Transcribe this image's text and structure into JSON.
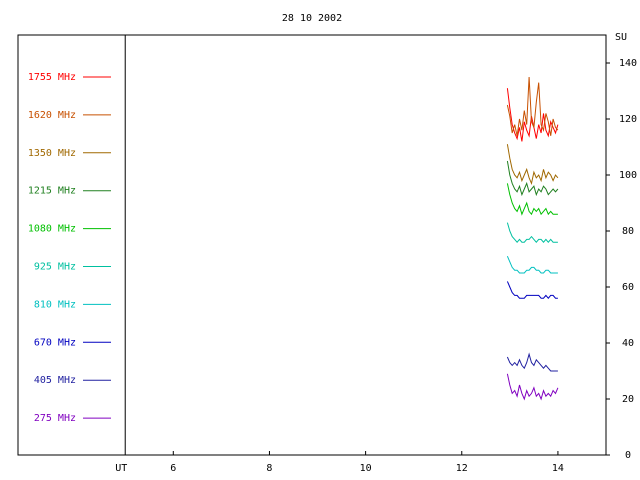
{
  "chart_data": {
    "type": "line",
    "title": "28 10 2002",
    "y_label": "SU",
    "x": [
      12.95,
      13.0,
      13.05,
      13.1,
      13.15,
      13.2,
      13.25,
      13.3,
      13.35,
      13.4,
      13.45,
      13.5,
      13.55,
      13.6,
      13.65,
      13.7,
      13.75,
      13.8,
      13.85,
      13.9,
      13.95,
      14.0
    ],
    "series": [
      {
        "name": "1755 MHz",
        "color": "#ff0000",
        "values": [
          131,
          124,
          118,
          115,
          113,
          117,
          112,
          119,
          116,
          114,
          121,
          117,
          113,
          118,
          115,
          122,
          116,
          114,
          119,
          117,
          115,
          118
        ]
      },
      {
        "name": "1620 MHz",
        "color": "#c85000",
        "values": [
          125,
          121,
          115,
          118,
          114,
          120,
          116,
          123,
          118,
          135,
          119,
          117,
          126,
          133,
          118,
          116,
          122,
          119,
          114,
          120,
          117,
          116
        ]
      },
      {
        "name": "1350 MHz",
        "color": "#a06800",
        "values": [
          111,
          106,
          102,
          100,
          99,
          101,
          98,
          100,
          102,
          99,
          97,
          101,
          99,
          100,
          98,
          102,
          99,
          101,
          100,
          98,
          100,
          99
        ]
      },
      {
        "name": "1215 MHz",
        "color": "#208020",
        "values": [
          105,
          100,
          97,
          95,
          94,
          96,
          93,
          95,
          97,
          94,
          95,
          96,
          93,
          95,
          94,
          96,
          95,
          93,
          94,
          95,
          94,
          95
        ]
      },
      {
        "name": "1080 MHz",
        "color": "#00c000",
        "values": [
          97,
          93,
          90,
          88,
          87,
          89,
          86,
          88,
          90,
          87,
          86,
          88,
          87,
          88,
          86,
          87,
          88,
          86,
          87,
          86,
          86,
          86
        ]
      },
      {
        "name": "925 MHz",
        "color": "#00c0a0",
        "values": [
          83,
          80,
          78,
          77,
          76,
          77,
          76,
          76,
          77,
          77,
          78,
          77,
          76,
          77,
          77,
          76,
          77,
          76,
          77,
          76,
          76,
          76
        ]
      },
      {
        "name": "810 MHz",
        "color": "#00c0c0",
        "values": [
          71,
          69,
          67,
          66,
          66,
          65,
          65,
          65,
          66,
          66,
          67,
          67,
          66,
          66,
          65,
          65,
          66,
          66,
          65,
          65,
          65,
          65
        ]
      },
      {
        "name": "670 MHz",
        "color": "#0000c0",
        "values": [
          62,
          60,
          58,
          57,
          57,
          56,
          56,
          56,
          57,
          57,
          57,
          57,
          57,
          57,
          56,
          56,
          57,
          56,
          57,
          57,
          56,
          56
        ]
      },
      {
        "name": "405 MHz",
        "color": "#2020a0",
        "values": [
          35,
          33,
          32,
          33,
          32,
          34,
          32,
          31,
          33,
          36,
          33,
          32,
          34,
          33,
          32,
          31,
          32,
          31,
          30,
          30,
          30,
          30
        ]
      },
      {
        "name": "275 MHz",
        "color": "#8000c0",
        "values": [
          29,
          25,
          22,
          23,
          21,
          25,
          22,
          20,
          23,
          21,
          22,
          24,
          21,
          22,
          20,
          23,
          21,
          22,
          21,
          23,
          22,
          24
        ]
      }
    ],
    "xlim": [
      2.77,
      15
    ],
    "xticks": [
      {
        "value": 5,
        "label": "UT"
      },
      6,
      8,
      10,
      12,
      14
    ],
    "ylim": [
      0,
      150
    ],
    "yticks": [
      0,
      20,
      40,
      60,
      80,
      100,
      120,
      140
    ],
    "legend": "left",
    "grid": false
  }
}
